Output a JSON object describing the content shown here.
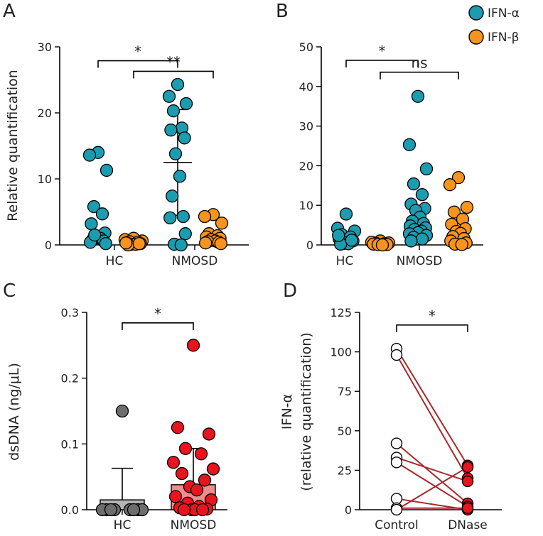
{
  "legend": {
    "items": [
      {
        "label": "IFN-α",
        "color": "#1c9cb0"
      },
      {
        "label": "IFN-β",
        "color": "#f7941d"
      }
    ]
  },
  "colors": {
    "ifn_alpha": "#1c9cb0",
    "ifn_beta": "#f7941d",
    "hc_gray": "#6d6d6d",
    "nmosd_red": "#e8141e",
    "nmosd_bar": "#f08c8c",
    "hc_bar": "#b5b5b5",
    "paired_line": "#a8282b"
  },
  "chart_data": [
    {
      "panel": "A",
      "type": "scatter",
      "ylabel": "Relative quantification",
      "ylim": [
        0,
        30
      ],
      "yticks": [
        0,
        10,
        20,
        30
      ],
      "categories": [
        "HC",
        "NMOSD"
      ],
      "series": [
        {
          "name": "IFN-α",
          "group": "HC",
          "values": [
            14.0,
            13.6,
            11.3,
            5.8,
            4.7,
            3.2,
            1.8,
            1.2,
            1.0,
            0.8,
            0.6,
            0.4,
            0.2,
            1.5
          ]
        },
        {
          "name": "IFN-β",
          "group": "HC",
          "values": [
            1.0,
            0.8,
            0.6,
            0.5,
            0.4,
            0.3,
            0.2,
            0.1,
            0.1,
            0.0,
            0.2,
            0.3
          ]
        },
        {
          "name": "IFN-α",
          "group": "NMOSD",
          "values": [
            24.3,
            22.5,
            21.4,
            20.3,
            17.7,
            17.4,
            16.2,
            13.8,
            10.4,
            7.4,
            4.3,
            4.1,
            1.7,
            0.1,
            0.0
          ]
        },
        {
          "name": "IFN-β",
          "group": "NMOSD",
          "values": [
            4.6,
            4.3,
            3.3,
            1.7,
            1.4,
            1.2,
            1.0,
            0.8,
            0.6,
            0.5,
            0.4,
            0.3,
            0.2
          ]
        }
      ],
      "summary": {
        "group": "NMOSD",
        "series": "IFN-α",
        "mean": 12.5,
        "sd_low": 4.5,
        "sd_high": 20.5
      },
      "annotations": [
        {
          "label": "*",
          "from": "HC IFN-α",
          "to": "NMOSD IFN-α",
          "level": 27.9
        },
        {
          "label": "**",
          "from": "HC IFN-β",
          "to": "NMOSD IFN-β",
          "level": 26.3
        }
      ]
    },
    {
      "panel": "B",
      "type": "scatter",
      "ylabel": "",
      "ylim": [
        0,
        50
      ],
      "yticks": [
        0,
        10,
        20,
        30,
        40,
        50
      ],
      "categories": [
        "HC",
        "NMOSD"
      ],
      "series": [
        {
          "name": "IFN-α",
          "group": "HC",
          "values": [
            7.8,
            4.2,
            3.5,
            2.6,
            2.0,
            1.5,
            1.0,
            0.6,
            0.3,
            0.2,
            1.2,
            2.4
          ]
        },
        {
          "name": "IFN-β",
          "group": "HC",
          "values": [
            1.0,
            0.7,
            0.5,
            0.4,
            0.3,
            0.2,
            0.1,
            0.1,
            0.0
          ]
        },
        {
          "name": "IFN-α",
          "group": "NMOSD",
          "values": [
            37.5,
            25.3,
            19.2,
            15.4,
            12.7,
            10.3,
            9.2,
            8.7,
            7.0,
            6.0,
            5.4,
            4.8,
            4.3,
            3.9,
            3.5,
            3.1,
            2.8,
            2.4,
            1.9,
            1.5,
            1.0
          ]
        },
        {
          "name": "IFN-β",
          "group": "NMOSD",
          "values": [
            17.0,
            15.2,
            9.5,
            8.3,
            6.5,
            5.2,
            4.1,
            3.4,
            2.9,
            2.1,
            1.6,
            1.0,
            0.5,
            0.2,
            0.1
          ]
        }
      ],
      "annotations": [
        {
          "label": "*",
          "from": "HC IFN-α",
          "to": "NMOSD IFN-α",
          "level": 46.6
        },
        {
          "label": "ns",
          "from": "HC IFN-β",
          "to": "NMOSD IFN-β",
          "level": 43.6
        }
      ]
    },
    {
      "panel": "C",
      "type": "bar",
      "ylabel": "dsDNA (ng/μL)",
      "ylim": [
        0,
        0.3
      ],
      "yticks": [
        "0.0",
        "0.1",
        "0.2",
        "0.3"
      ],
      "categories": [
        "HC",
        "NMOSD"
      ],
      "values": [
        0.015,
        0.038
      ],
      "errors": [
        0.048,
        0.055
      ],
      "points": [
        [
          0.15,
          0.0,
          0.0,
          0.0,
          0.0,
          0.0,
          0.0,
          0.0,
          0.0
        ],
        [
          0.25,
          0.125,
          0.115,
          0.093,
          0.085,
          0.072,
          0.062,
          0.055,
          0.045,
          0.035,
          0.03,
          0.02,
          0.015,
          0.01,
          0.005,
          0.003,
          0.001,
          0.0,
          0.0,
          0.0,
          0.0
        ]
      ],
      "annotations": [
        {
          "label": "*",
          "from": "HC",
          "to": "NMOSD",
          "level": 0.284
        }
      ]
    },
    {
      "panel": "D",
      "type": "line",
      "ylabel": "IFN-α",
      "ylabel2": "(relative quantification)",
      "ylim": [
        0,
        125
      ],
      "yticks": [
        0,
        25,
        50,
        75,
        100,
        125
      ],
      "categories": [
        "Control",
        "DNase"
      ],
      "pairs": [
        [
          102,
          28
        ],
        [
          98,
          20
        ],
        [
          42,
          4
        ],
        [
          33,
          18
        ],
        [
          30,
          2
        ],
        [
          7,
          0
        ],
        [
          1,
          1
        ],
        [
          0,
          27
        ]
      ],
      "annotations": [
        {
          "label": "*",
          "from": "Control",
          "to": "DNase",
          "level": 117
        }
      ]
    }
  ]
}
